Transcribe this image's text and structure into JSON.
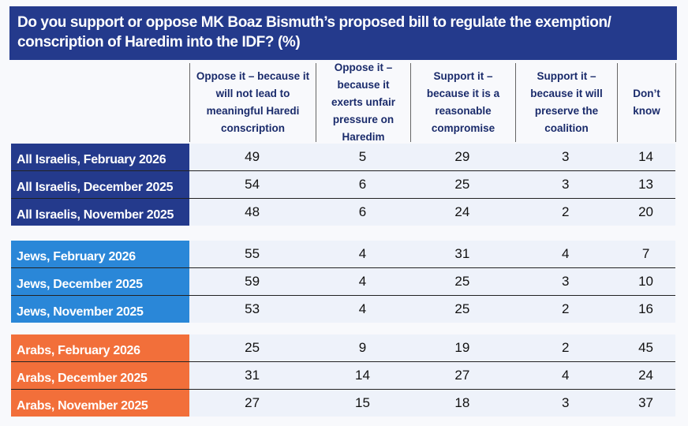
{
  "title": "Do you support or oppose MK Boaz Bismuth’s proposed bill to regulate the exemption/ conscription of Haredim into the IDF? (%)",
  "columns": [
    "Oppose it – because it will not lead to meaningful Haredi conscription",
    "Oppose it – because it exerts unfair pressure on Haredim",
    "Support it – because it is a reasonable compromise",
    "Support it – because it will preserve the coalition",
    "Don’t know"
  ],
  "colors": {
    "title": "#243a8c",
    "all_israelis": "#243a8c",
    "jews": "#2a87d8",
    "arabs": "#f26f3a"
  },
  "rows": [
    {
      "label": "All Israelis, February 2026",
      "values": [
        "49",
        "5",
        "29",
        "3",
        "14"
      ]
    },
    {
      "label": "All Israelis, December 2025",
      "values": [
        "54",
        "6",
        "25",
        "3",
        "13"
      ]
    },
    {
      "label": "All Israelis, November 2025",
      "values": [
        "48",
        "6",
        "24",
        "2",
        "20"
      ]
    },
    {
      "label": "Jews, February 2026",
      "values": [
        "55",
        "4",
        "31",
        "4",
        "7"
      ]
    },
    {
      "label": "Jews, December 2025",
      "values": [
        "59",
        "4",
        "25",
        "3",
        "10"
      ]
    },
    {
      "label": "Jews, November 2025",
      "values": [
        "53",
        "4",
        "25",
        "2",
        "16"
      ]
    },
    {
      "label": "Arabs, February 2026",
      "values": [
        "25",
        "9",
        "19",
        "2",
        "45"
      ]
    },
    {
      "label": "Arabs, December 2025",
      "values": [
        "31",
        "14",
        "27",
        "4",
        "24"
      ]
    },
    {
      "label": "Arabs, November 2025",
      "values": [
        "27",
        "15",
        "18",
        "3",
        "37"
      ]
    }
  ]
}
